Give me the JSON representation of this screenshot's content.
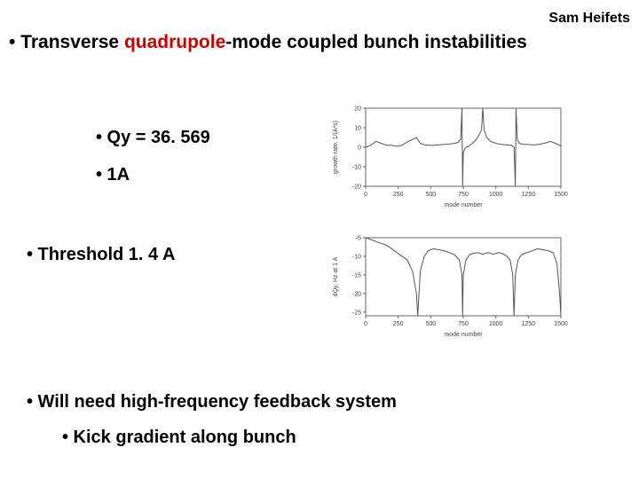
{
  "author": "Sam Heifets",
  "title": {
    "prefix": "• Transverse ",
    "red": "quadrupole",
    "suffix": "-mode coupled bunch instabilities"
  },
  "bullets": {
    "qy": "• Qy = 36. 569",
    "current": "• 1A",
    "threshold": "• Threshold 1. 4 A",
    "feedback": "• Will need high-frequency feedback system",
    "kick": "• Kick gradient along bunch"
  },
  "chart1": {
    "type": "line",
    "xlabel": "mode number",
    "ylabel": "growth rate, 1/(A*s)",
    "xlim": [
      0,
      1500
    ],
    "ylim": [
      -20,
      20
    ],
    "xticks": [
      0,
      250,
      500,
      750,
      1000,
      1250,
      1500
    ],
    "yticks": [
      -20,
      -10,
      0,
      10,
      20
    ],
    "line_color": "#555555",
    "line_width": 1,
    "axis_color": "#666666",
    "tick_fontsize": 7,
    "label_fontsize": 7,
    "background_color": "#ffffff",
    "data": [
      [
        0,
        0
      ],
      [
        40,
        1
      ],
      [
        80,
        3
      ],
      [
        120,
        2
      ],
      [
        160,
        1
      ],
      [
        200,
        1
      ],
      [
        240,
        0.5
      ],
      [
        280,
        1
      ],
      [
        300,
        2
      ],
      [
        330,
        3
      ],
      [
        360,
        4
      ],
      [
        390,
        5
      ],
      [
        410,
        3
      ],
      [
        420,
        2
      ],
      [
        440,
        1.5
      ],
      [
        460,
        1.2
      ],
      [
        480,
        1
      ],
      [
        520,
        1
      ],
      [
        560,
        1.2
      ],
      [
        600,
        1.4
      ],
      [
        640,
        1.6
      ],
      [
        680,
        2
      ],
      [
        710,
        2.5
      ],
      [
        730,
        4
      ],
      [
        740,
        20
      ],
      [
        745,
        -20
      ],
      [
        750,
        -3
      ],
      [
        760,
        -1
      ],
      [
        770,
        0
      ],
      [
        790,
        0.5
      ],
      [
        820,
        2
      ],
      [
        850,
        4
      ],
      [
        870,
        6
      ],
      [
        890,
        9
      ],
      [
        900,
        20
      ],
      [
        910,
        9
      ],
      [
        930,
        5
      ],
      [
        960,
        3
      ],
      [
        1000,
        2
      ],
      [
        1040,
        1.5
      ],
      [
        1080,
        1.2
      ],
      [
        1120,
        1
      ],
      [
        1140,
        0
      ],
      [
        1150,
        -20
      ],
      [
        1155,
        20
      ],
      [
        1165,
        4
      ],
      [
        1180,
        2
      ],
      [
        1210,
        1.5
      ],
      [
        1250,
        1.4
      ],
      [
        1290,
        1.2
      ],
      [
        1330,
        1.5
      ],
      [
        1370,
        2
      ],
      [
        1420,
        3
      ],
      [
        1460,
        2
      ],
      [
        1490,
        1
      ],
      [
        1500,
        0.5
      ]
    ]
  },
  "chart2": {
    "type": "line",
    "xlabel": "mode number",
    "ylabel": "dQy, Hz at 1 A",
    "xlim": [
      0,
      1500
    ],
    "ylim": [
      -26,
      -5
    ],
    "xticks": [
      0,
      250,
      500,
      750,
      1000,
      1250,
      1500
    ],
    "yticks": [
      -25,
      -20,
      -15,
      -10,
      -5
    ],
    "line_color": "#555555",
    "line_width": 1,
    "axis_color": "#666666",
    "tick_fontsize": 7,
    "label_fontsize": 7,
    "background_color": "#ffffff",
    "data": [
      [
        0,
        -5
      ],
      [
        40,
        -5.5
      ],
      [
        80,
        -6
      ],
      [
        120,
        -6.5
      ],
      [
        160,
        -7
      ],
      [
        200,
        -8
      ],
      [
        240,
        -9
      ],
      [
        280,
        -10
      ],
      [
        320,
        -11
      ],
      [
        360,
        -14
      ],
      [
        390,
        -20
      ],
      [
        400,
        -26
      ],
      [
        410,
        -20
      ],
      [
        420,
        -14
      ],
      [
        450,
        -10
      ],
      [
        480,
        -8.5
      ],
      [
        520,
        -8
      ],
      [
        560,
        -8.2
      ],
      [
        600,
        -8.5
      ],
      [
        640,
        -9
      ],
      [
        680,
        -9.5
      ],
      [
        720,
        -11
      ],
      [
        740,
        -15
      ],
      [
        745,
        -26
      ],
      [
        750,
        -15
      ],
      [
        770,
        -11
      ],
      [
        800,
        -9.5
      ],
      [
        830,
        -9.2
      ],
      [
        860,
        -9
      ],
      [
        880,
        -9.2
      ],
      [
        900,
        -9.5
      ],
      [
        920,
        -9.2
      ],
      [
        940,
        -9
      ],
      [
        960,
        -9.2
      ],
      [
        980,
        -9.5
      ],
      [
        1000,
        -9.2
      ],
      [
        1020,
        -9
      ],
      [
        1050,
        -9.3
      ],
      [
        1080,
        -9.8
      ],
      [
        1110,
        -11
      ],
      [
        1130,
        -15
      ],
      [
        1140,
        -26
      ],
      [
        1150,
        -15
      ],
      [
        1170,
        -11
      ],
      [
        1200,
        -9.5
      ],
      [
        1240,
        -9
      ],
      [
        1280,
        -8.5
      ],
      [
        1320,
        -8
      ],
      [
        1360,
        -8.2
      ],
      [
        1400,
        -8.5
      ],
      [
        1440,
        -9
      ],
      [
        1470,
        -12
      ],
      [
        1490,
        -20
      ],
      [
        1500,
        -26
      ]
    ]
  }
}
